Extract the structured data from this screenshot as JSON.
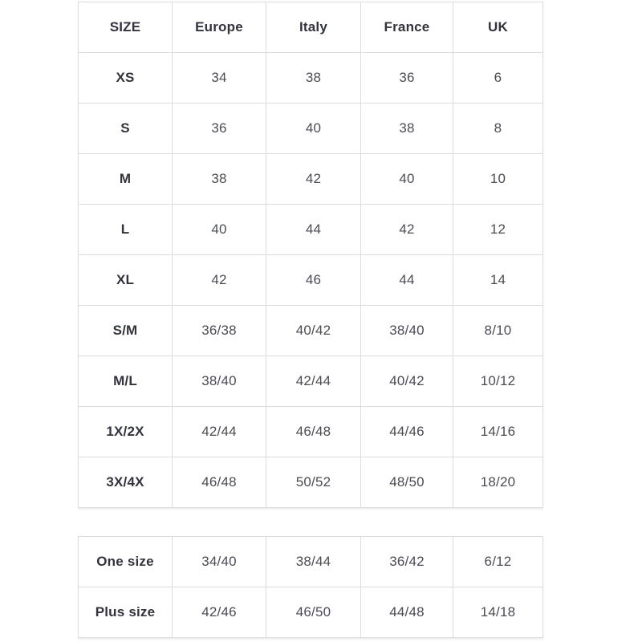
{
  "page": {
    "background_color": "#ffffff",
    "border_color": "#dcdcdc",
    "header_text_color": "#33333d",
    "cell_text_color": "#4b4b55"
  },
  "size_table": {
    "headers": [
      "SIZE",
      "Europe",
      "Italy",
      "France",
      "UK"
    ],
    "rows": [
      [
        "XS",
        "34",
        "38",
        "36",
        "6"
      ],
      [
        "S",
        "36",
        "40",
        "38",
        "8"
      ],
      [
        "M",
        "38",
        "42",
        "40",
        "10"
      ],
      [
        "L",
        "40",
        "44",
        "42",
        "12"
      ],
      [
        "XL",
        "42",
        "46",
        "44",
        "14"
      ],
      [
        "S/M",
        "36/38",
        "40/42",
        "38/40",
        "8/10"
      ],
      [
        "M/L",
        "38/40",
        "42/44",
        "40/42",
        "10/12"
      ],
      [
        "1X/2X",
        "42/44",
        "46/48",
        "44/46",
        "14/16"
      ],
      [
        "3X/4X",
        "46/48",
        "50/52",
        "48/50",
        "18/20"
      ]
    ]
  },
  "special_size_table": {
    "rows": [
      [
        "One size",
        "34/40",
        "38/44",
        "36/42",
        "6/12"
      ],
      [
        "Plus size",
        "42/46",
        "46/50",
        "44/48",
        "14/18"
      ]
    ]
  }
}
